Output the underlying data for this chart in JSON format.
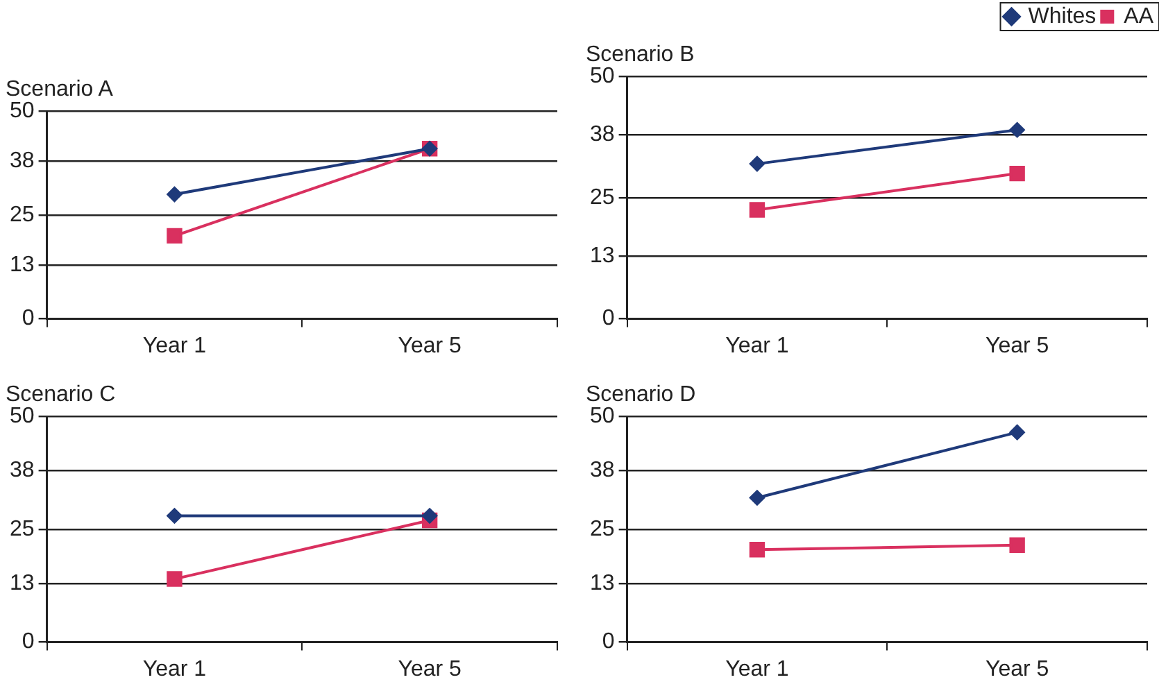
{
  "chart_data": [
    {
      "type": "line",
      "title": "Scenario A",
      "categories": [
        "Year 1",
        "Year 5"
      ],
      "ylim": [
        0,
        50
      ],
      "yticks": [
        0,
        13,
        25,
        38,
        50
      ],
      "grid": "y",
      "legend": false,
      "series": [
        {
          "color": "#1f3a7a",
          "marker": "diamond",
          "values": [
            30,
            41
          ]
        },
        {
          "color": "#d9305f",
          "marker": "square",
          "values": [
            20,
            41
          ]
        }
      ]
    },
    {
      "type": "line",
      "title": "Scenario B",
      "categories": [
        "Year 1",
        "Year 5"
      ],
      "ylim": [
        0,
        50
      ],
      "yticks": [
        0,
        13,
        25,
        38,
        50
      ],
      "grid": "y",
      "legend": "top right",
      "series": [
        {
          "name": "Whites",
          "color": "#1f3a7a",
          "marker": "diamond",
          "values": [
            32,
            39
          ]
        },
        {
          "name": "AA",
          "color": "#d9305f",
          "marker": "square",
          "values": [
            22.5,
            30
          ]
        }
      ]
    },
    {
      "type": "line",
      "title": "Scenario C",
      "categories": [
        "Year 1",
        "Year 5"
      ],
      "ylim": [
        0,
        50
      ],
      "yticks": [
        0,
        13,
        25,
        38,
        50
      ],
      "grid": "y",
      "legend": false,
      "series": [
        {
          "color": "#1f3a7a",
          "marker": "diamond",
          "values": [
            28,
            28
          ]
        },
        {
          "color": "#d9305f",
          "marker": "square",
          "values": [
            14,
            27
          ]
        }
      ]
    },
    {
      "type": "line",
      "title": "Scenario D",
      "categories": [
        "Year 1",
        "Year 5"
      ],
      "ylim": [
        0,
        50
      ],
      "yticks": [
        0,
        13,
        25,
        38,
        50
      ],
      "grid": "y",
      "legend": false,
      "series": [
        {
          "color": "#1f3a7a",
          "marker": "diamond",
          "values": [
            32,
            46.5
          ]
        },
        {
          "color": "#d9305f",
          "marker": "square",
          "values": [
            20.5,
            21.5
          ]
        }
      ]
    }
  ]
}
